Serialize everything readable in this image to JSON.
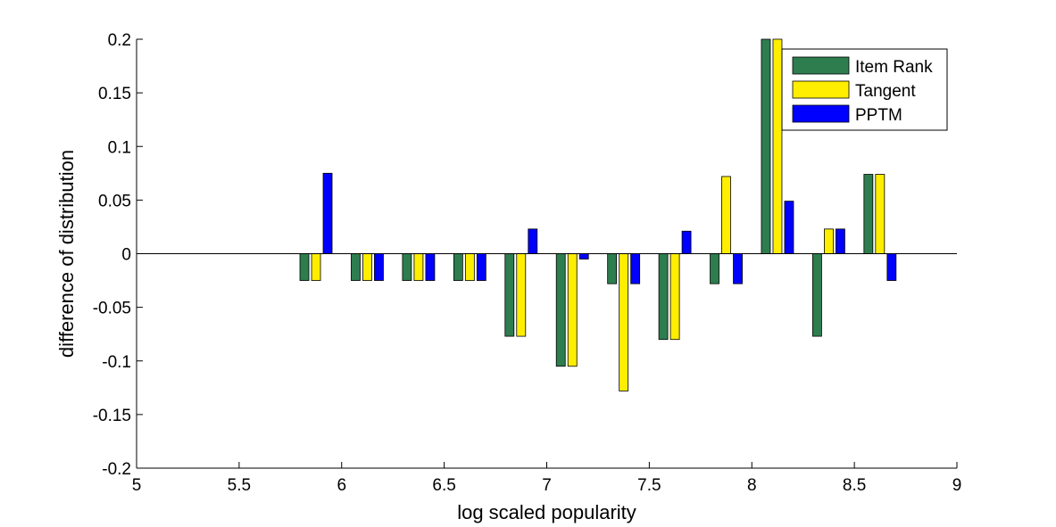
{
  "chart_data": {
    "type": "bar",
    "title": "",
    "xlabel": "log scaled popularity",
    "ylabel": "difference of distribution",
    "xlim": [
      5,
      9
    ],
    "ylim": [
      -0.2,
      0.2
    ],
    "xticks": [
      "5",
      "5.5",
      "6",
      "6.5",
      "7",
      "7.5",
      "8",
      "8.5",
      "9"
    ],
    "yticks": [
      "-0.2",
      "-0.15",
      "-0.1",
      "-0.05",
      "0",
      "0.05",
      "0.1",
      "0.15",
      "0.2"
    ],
    "grid": false,
    "legend_position": "top-right",
    "x": [
      5.875,
      6.125,
      6.375,
      6.625,
      6.875,
      7.125,
      7.375,
      7.625,
      7.875,
      8.125,
      8.375,
      8.625
    ],
    "series": [
      {
        "name": "Item Rank",
        "color": "#2e7d4f",
        "values": [
          -0.025,
          -0.025,
          -0.025,
          -0.025,
          -0.077,
          -0.105,
          -0.028,
          -0.08,
          -0.028,
          0.2,
          -0.077,
          0.074
        ]
      },
      {
        "name": "Tangent",
        "color": "#ffee00",
        "values": [
          -0.025,
          -0.025,
          -0.025,
          -0.025,
          -0.077,
          -0.105,
          -0.128,
          -0.08,
          0.072,
          0.2,
          0.023,
          0.074
        ]
      },
      {
        "name": "PPTM",
        "color": "#0000ff",
        "values": [
          0.075,
          -0.025,
          -0.025,
          -0.025,
          0.023,
          -0.005,
          -0.028,
          0.021,
          -0.028,
          0.049,
          0.023,
          -0.025
        ]
      }
    ]
  }
}
